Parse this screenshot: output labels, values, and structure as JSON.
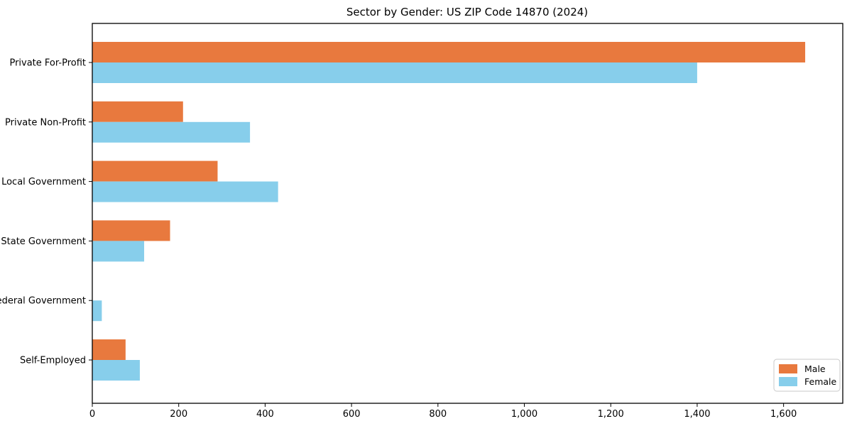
{
  "title": "Sector by Gender: US ZIP Code 14870 (2024)",
  "colors": {
    "male": "#e8793e",
    "female": "#87ceeb",
    "axis": "#000000",
    "legend_border": "#c9c9c9",
    "background": "#ffffff"
  },
  "legend": {
    "position": "lower right",
    "items": [
      {
        "label": "Male",
        "color": "#e8793e"
      },
      {
        "label": "Female",
        "color": "#87ceeb"
      }
    ]
  },
  "chart_data": {
    "type": "bar",
    "orientation": "horizontal",
    "title": "Sector by Gender: US ZIP Code 14870 (2024)",
    "categories": [
      "Private For-Profit",
      "Private Non-Profit",
      "Local Government",
      "State Government",
      "Federal Government",
      "Self-Employed"
    ],
    "series": [
      {
        "name": "Male",
        "color": "#e8793e",
        "values": [
          1650,
          210,
          290,
          180,
          0,
          77
        ]
      },
      {
        "name": "Female",
        "color": "#87ceeb",
        "values": [
          1400,
          365,
          430,
          120,
          22,
          110
        ]
      }
    ],
    "xlabel": "",
    "ylabel": "",
    "xlim": [
      0,
      1737
    ],
    "x_ticks": [
      0,
      200,
      400,
      600,
      800,
      1000,
      1200,
      1400,
      1600
    ],
    "x_tick_labels": [
      "0",
      "200",
      "400",
      "600",
      "800",
      "1,000",
      "1,200",
      "1,400",
      "1,600"
    ],
    "grid": false,
    "legend_position": "lower right"
  }
}
